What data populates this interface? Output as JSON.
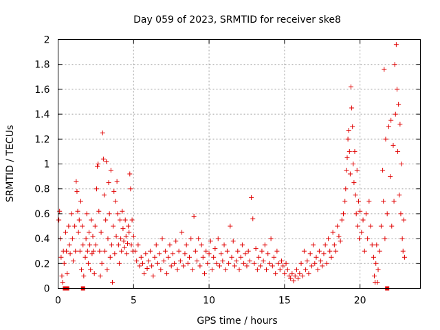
{
  "chart_data": {
    "type": "scatter",
    "title": "Day 059 of 2023, SRMTID for receiver ske8",
    "xlabel": "GPS time / hours",
    "ylabel": "SRMTID / TECUs",
    "xlim": [
      0,
      24
    ],
    "ylim": [
      0,
      2
    ],
    "xticks": [
      0,
      5,
      10,
      15,
      20
    ],
    "xtick_labels": [
      "0",
      "5",
      "10",
      "15",
      "20"
    ],
    "yticks": [
      0,
      0.2,
      0.4,
      0.6,
      0.8,
      1,
      1.2,
      1.4,
      1.6,
      1.8,
      2
    ],
    "ytick_labels": [
      "0",
      "0.2",
      "0.4",
      "0.6",
      "0.8",
      "1",
      "1.2",
      "1.4",
      "1.6",
      "1.8",
      "2"
    ],
    "grid": true,
    "marker": "plus",
    "color": "#e00000",
    "series": [
      {
        "name": "SRMTID",
        "points": [
          [
            0.05,
            0.55
          ],
          [
            0.1,
            0.62
          ],
          [
            0.15,
            0.4
          ],
          [
            0.2,
            0.25
          ],
          [
            0.25,
            0.1
          ],
          [
            0.3,
            0.05
          ],
          [
            0.35,
            0.3
          ],
          [
            0.4,
            0.2
          ],
          [
            0.5,
            0.45
          ],
          [
            0.55,
            0.3
          ],
          [
            0.6,
            0.12
          ],
          [
            0.7,
            0.5
          ],
          [
            0.75,
            0.35
          ],
          [
            0.8,
            0.28
          ],
          [
            0.9,
            0.6
          ],
          [
            0.95,
            0.4
          ],
          [
            1.0,
            0.22
          ],
          [
            1.1,
            0.5
          ],
          [
            1.15,
            0.3
          ],
          [
            1.2,
            0.86
          ],
          [
            1.25,
            0.78
          ],
          [
            1.3,
            0.62
          ],
          [
            1.35,
            0.45
          ],
          [
            1.4,
            0.55
          ],
          [
            1.45,
            0.3
          ],
          [
            1.5,
            0.7
          ],
          [
            1.55,
            0.15
          ],
          [
            1.6,
            0.5
          ],
          [
            1.65,
            0.35
          ],
          [
            1.7,
            0.1
          ],
          [
            1.8,
            0.25
          ],
          [
            1.85,
            0.4
          ],
          [
            1.9,
            0.6
          ],
          [
            1.95,
            0.3
          ],
          [
            2.0,
            0.2
          ],
          [
            2.05,
            0.45
          ],
          [
            2.1,
            0.35
          ],
          [
            2.15,
            0.15
          ],
          [
            2.2,
            0.55
          ],
          [
            2.25,
            0.28
          ],
          [
            2.3,
            0.42
          ],
          [
            2.35,
            0.3
          ],
          [
            2.4,
            0.12
          ],
          [
            2.45,
            0.5
          ],
          [
            2.5,
            0.35
          ],
          [
            2.55,
            0.8
          ],
          [
            2.6,
            0.98
          ],
          [
            2.65,
            1.0
          ],
          [
            2.7,
            0.62
          ],
          [
            2.75,
            0.3
          ],
          [
            2.8,
            0.1
          ],
          [
            2.85,
            0.45
          ],
          [
            2.9,
            0.2
          ],
          [
            2.95,
            1.25
          ],
          [
            3.0,
            1.04
          ],
          [
            3.05,
            0.75
          ],
          [
            3.1,
            0.3
          ],
          [
            3.15,
            0.55
          ],
          [
            3.2,
            1.02
          ],
          [
            3.25,
            0.15
          ],
          [
            3.3,
            0.4
          ],
          [
            3.35,
            0.85
          ],
          [
            3.4,
            0.6
          ],
          [
            3.45,
            0.25
          ],
          [
            3.5,
            0.95
          ],
          [
            3.55,
            0.35
          ],
          [
            3.6,
            0.05
          ],
          [
            3.65,
            0.5
          ],
          [
            3.7,
            0.78
          ],
          [
            3.75,
            0.28
          ],
          [
            3.8,
            0.7
          ],
          [
            3.85,
            0.42
          ],
          [
            3.9,
            0.86
          ],
          [
            3.95,
            0.6
          ],
          [
            4.0,
            0.35
          ],
          [
            4.05,
            0.2
          ],
          [
            4.1,
            0.55
          ],
          [
            4.15,
            0.4
          ],
          [
            4.2,
            0.3
          ],
          [
            4.25,
            0.62
          ],
          [
            4.3,
            0.48
          ],
          [
            4.35,
            0.38
          ],
          [
            4.4,
            0.33
          ],
          [
            4.45,
            0.55
          ],
          [
            4.5,
            0.42
          ],
          [
            4.55,
            0.28
          ],
          [
            4.6,
            0.36
          ],
          [
            4.65,
            0.5
          ],
          [
            4.7,
            0.45
          ],
          [
            4.75,
            0.92
          ],
          [
            4.8,
            0.8
          ],
          [
            4.85,
            0.35
          ],
          [
            4.9,
            0.55
          ],
          [
            4.95,
            0.3
          ],
          [
            5.0,
            0.42
          ],
          [
            5.1,
            0.3
          ],
          [
            5.2,
            0.22
          ],
          [
            5.3,
            0.35
          ],
          [
            5.4,
            0.18
          ],
          [
            5.5,
            0.25
          ],
          [
            5.6,
            0.2
          ],
          [
            5.7,
            0.12
          ],
          [
            5.8,
            0.28
          ],
          [
            5.9,
            0.16
          ],
          [
            6.0,
            0.22
          ],
          [
            6.1,
            0.3
          ],
          [
            6.2,
            0.18
          ],
          [
            6.3,
            0.1
          ],
          [
            6.4,
            0.25
          ],
          [
            6.5,
            0.35
          ],
          [
            6.6,
            0.2
          ],
          [
            6.7,
            0.28
          ],
          [
            6.8,
            0.15
          ],
          [
            6.9,
            0.4
          ],
          [
            7.0,
            0.22
          ],
          [
            7.1,
            0.3
          ],
          [
            7.2,
            0.12
          ],
          [
            7.3,
            0.25
          ],
          [
            7.4,
            0.35
          ],
          [
            7.5,
            0.18
          ],
          [
            7.6,
            0.28
          ],
          [
            7.7,
            0.2
          ],
          [
            7.8,
            0.38
          ],
          [
            7.9,
            0.15
          ],
          [
            8.0,
            0.3
          ],
          [
            8.1,
            0.22
          ],
          [
            8.2,
            0.45
          ],
          [
            8.3,
            0.18
          ],
          [
            8.4,
            0.28
          ],
          [
            8.5,
            0.35
          ],
          [
            8.6,
            0.2
          ],
          [
            8.7,
            0.25
          ],
          [
            8.8,
            0.4
          ],
          [
            8.9,
            0.15
          ],
          [
            9.0,
            0.58
          ],
          [
            9.1,
            0.3
          ],
          [
            9.2,
            0.22
          ],
          [
            9.3,
            0.4
          ],
          [
            9.4,
            0.18
          ],
          [
            9.5,
            0.35
          ],
          [
            9.6,
            0.25
          ],
          [
            9.7,
            0.12
          ],
          [
            9.8,
            0.3
          ],
          [
            9.9,
            0.2
          ],
          [
            10.0,
            0.28
          ],
          [
            10.1,
            0.38
          ],
          [
            10.2,
            0.15
          ],
          [
            10.3,
            0.25
          ],
          [
            10.4,
            0.32
          ],
          [
            10.5,
            0.2
          ],
          [
            10.6,
            0.4
          ],
          [
            10.7,
            0.18
          ],
          [
            10.8,
            0.28
          ],
          [
            10.9,
            0.22
          ],
          [
            11.0,
            0.35
          ],
          [
            11.1,
            0.15
          ],
          [
            11.2,
            0.3
          ],
          [
            11.3,
            0.2
          ],
          [
            11.4,
            0.5
          ],
          [
            11.5,
            0.25
          ],
          [
            11.6,
            0.38
          ],
          [
            11.7,
            0.18
          ],
          [
            11.8,
            0.22
          ],
          [
            11.9,
            0.3
          ],
          [
            12.0,
            0.15
          ],
          [
            12.1,
            0.25
          ],
          [
            12.2,
            0.35
          ],
          [
            12.3,
            0.2
          ],
          [
            12.4,
            0.28
          ],
          [
            12.5,
            0.18
          ],
          [
            12.6,
            0.3
          ],
          [
            12.7,
            0.22
          ],
          [
            12.8,
            0.73
          ],
          [
            12.9,
            0.56
          ],
          [
            13.0,
            0.2
          ],
          [
            13.1,
            0.32
          ],
          [
            13.2,
            0.15
          ],
          [
            13.3,
            0.25
          ],
          [
            13.4,
            0.18
          ],
          [
            13.5,
            0.3
          ],
          [
            13.6,
            0.22
          ],
          [
            13.7,
            0.35
          ],
          [
            13.8,
            0.15
          ],
          [
            13.9,
            0.28
          ],
          [
            14.0,
            0.2
          ],
          [
            14.1,
            0.4
          ],
          [
            14.2,
            0.18
          ],
          [
            14.3,
            0.25
          ],
          [
            14.4,
            0.12
          ],
          [
            14.5,
            0.3
          ],
          [
            14.6,
            0.2
          ],
          [
            14.7,
            0.15
          ],
          [
            14.8,
            0.22
          ],
          [
            14.9,
            0.18
          ],
          [
            15.0,
            0.12
          ],
          [
            15.1,
            0.2
          ],
          [
            15.2,
            0.15
          ],
          [
            15.3,
            0.1
          ],
          [
            15.4,
            0.08
          ],
          [
            15.5,
            0.12
          ],
          [
            15.6,
            0.06
          ],
          [
            15.7,
            0.1
          ],
          [
            15.8,
            0.15
          ],
          [
            15.9,
            0.08
          ],
          [
            16.0,
            0.12
          ],
          [
            16.1,
            0.2
          ],
          [
            16.2,
            0.1
          ],
          [
            16.3,
            0.3
          ],
          [
            16.4,
            0.15
          ],
          [
            16.5,
            0.22
          ],
          [
            16.6,
            0.12
          ],
          [
            16.7,
            0.28
          ],
          [
            16.8,
            0.18
          ],
          [
            16.9,
            0.35
          ],
          [
            17.0,
            0.2
          ],
          [
            17.1,
            0.25
          ],
          [
            17.2,
            0.15
          ],
          [
            17.3,
            0.3
          ],
          [
            17.4,
            0.22
          ],
          [
            17.5,
            0.18
          ],
          [
            17.6,
            0.28
          ],
          [
            17.7,
            0.35
          ],
          [
            17.8,
            0.2
          ],
          [
            17.9,
            0.4
          ],
          [
            18.0,
            0.3
          ],
          [
            18.1,
            0.25
          ],
          [
            18.2,
            0.45
          ],
          [
            18.3,
            0.35
          ],
          [
            18.4,
            0.3
          ],
          [
            18.5,
            0.5
          ],
          [
            18.6,
            0.42
          ],
          [
            18.7,
            0.38
          ],
          [
            18.8,
            0.55
          ],
          [
            18.9,
            0.6
          ],
          [
            19.0,
            0.7
          ],
          [
            19.05,
            0.8
          ],
          [
            19.1,
            0.95
          ],
          [
            19.15,
            1.05
          ],
          [
            19.2,
            1.2
          ],
          [
            19.25,
            1.27
          ],
          [
            19.3,
            1.1
          ],
          [
            19.35,
            0.92
          ],
          [
            19.4,
            1.62
          ],
          [
            19.45,
            1.45
          ],
          [
            19.5,
            1.3
          ],
          [
            19.55,
            1.0
          ],
          [
            19.6,
            0.85
          ],
          [
            19.65,
            1.1
          ],
          [
            19.7,
            0.75
          ],
          [
            19.75,
            0.6
          ],
          [
            19.8,
            0.95
          ],
          [
            19.85,
            0.5
          ],
          [
            19.9,
            0.7
          ],
          [
            19.95,
            0.4
          ],
          [
            20.0,
            0.62
          ],
          [
            20.1,
            0.45
          ],
          [
            20.2,
            0.55
          ],
          [
            20.3,
            0.3
          ],
          [
            20.4,
            0.6
          ],
          [
            20.5,
            0.4
          ],
          [
            20.6,
            0.7
          ],
          [
            20.7,
            0.5
          ],
          [
            20.8,
            0.35
          ],
          [
            20.9,
            0.25
          ],
          [
            20.95,
            0.1
          ],
          [
            21.0,
            0.05
          ],
          [
            21.05,
            0.2
          ],
          [
            21.1,
            0.35
          ],
          [
            21.15,
            0.05
          ],
          [
            21.2,
            0.15
          ],
          [
            21.3,
            0.3
          ],
          [
            21.4,
            0.5
          ],
          [
            21.5,
            0.95
          ],
          [
            21.55,
            0.7
          ],
          [
            21.6,
            1.76
          ],
          [
            21.65,
            0.4
          ],
          [
            21.7,
            1.2
          ],
          [
            21.8,
            0.6
          ],
          [
            21.9,
            1.3
          ],
          [
            22.0,
            0.9
          ],
          [
            22.05,
            1.35
          ],
          [
            22.1,
            0.5
          ],
          [
            22.2,
            1.15
          ],
          [
            22.25,
            0.7
          ],
          [
            22.3,
            1.8
          ],
          [
            22.35,
            1.4
          ],
          [
            22.4,
            1.96
          ],
          [
            22.45,
            1.6
          ],
          [
            22.5,
            1.1
          ],
          [
            22.55,
            1.48
          ],
          [
            22.6,
            0.75
          ],
          [
            22.65,
            1.32
          ],
          [
            22.7,
            0.6
          ],
          [
            22.75,
            1.0
          ],
          [
            22.8,
            0.4
          ],
          [
            22.85,
            0.3
          ],
          [
            22.9,
            0.55
          ],
          [
            22.95,
            0.25
          ]
        ]
      }
    ],
    "square_markers": [
      [
        0.45,
        0.0
      ],
      [
        0.6,
        0.0
      ],
      [
        1.65,
        0.0
      ],
      [
        21.8,
        0.0
      ]
    ]
  }
}
